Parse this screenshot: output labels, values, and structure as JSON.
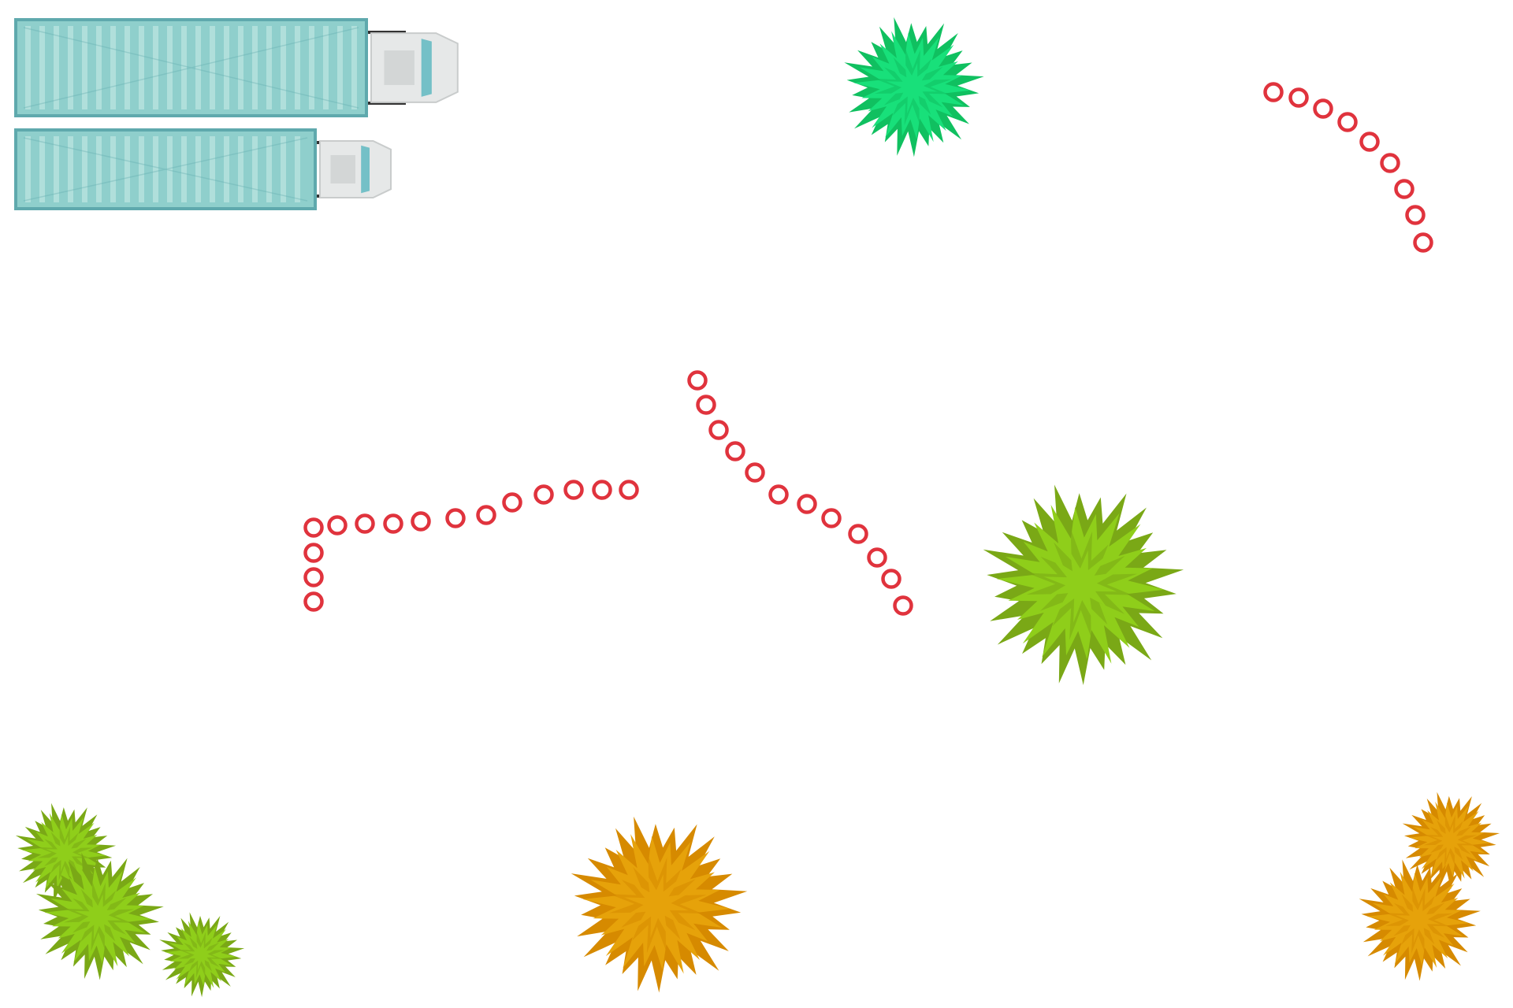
{
  "colors": {
    "background": "#ffffff",
    "marker_stroke": "#e0333d",
    "container_fill": "#8fcfcc",
    "container_border": "#5fa9ad",
    "container_rib": "#b8e2de",
    "cab_fill": "#e6e8e8",
    "cab_glass": "#74c0c7",
    "tree_green_dark": "#7aa816",
    "tree_green_light": "#8fce1a",
    "tree_emerald_dark": "#10c060",
    "tree_emerald_light": "#18e07a",
    "tree_orange_dark": "#d68a00",
    "tree_orange_light": "#e6a20a"
  },
  "vehicles": [
    {
      "name": "container-truck-long",
      "icon": "truck-icon"
    },
    {
      "name": "container-truck-short",
      "icon": "truck-icon"
    }
  ],
  "trees": [
    {
      "name": "tree-emerald-top",
      "icon": "tree-icon",
      "palette": "emerald"
    },
    {
      "name": "tree-green-center",
      "icon": "tree-icon",
      "palette": "green"
    },
    {
      "name": "tree-green-bottom-left-1",
      "icon": "tree-icon",
      "palette": "green"
    },
    {
      "name": "tree-green-bottom-left-2",
      "icon": "tree-icon",
      "palette": "green"
    },
    {
      "name": "tree-green-bottom-left-3",
      "icon": "tree-icon",
      "palette": "green"
    },
    {
      "name": "tree-orange-bottom-center",
      "icon": "tree-icon",
      "palette": "orange"
    },
    {
      "name": "tree-orange-bottom-right-1",
      "icon": "tree-icon",
      "palette": "orange"
    },
    {
      "name": "tree-orange-bottom-right-2",
      "icon": "tree-icon",
      "palette": "orange"
    }
  ],
  "marker_paths": [
    {
      "name": "marker-path-top-right",
      "icon": "ring-marker-icon"
    },
    {
      "name": "marker-path-center-left",
      "icon": "ring-marker-icon"
    },
    {
      "name": "marker-path-center-diagonal",
      "icon": "ring-marker-icon"
    }
  ]
}
